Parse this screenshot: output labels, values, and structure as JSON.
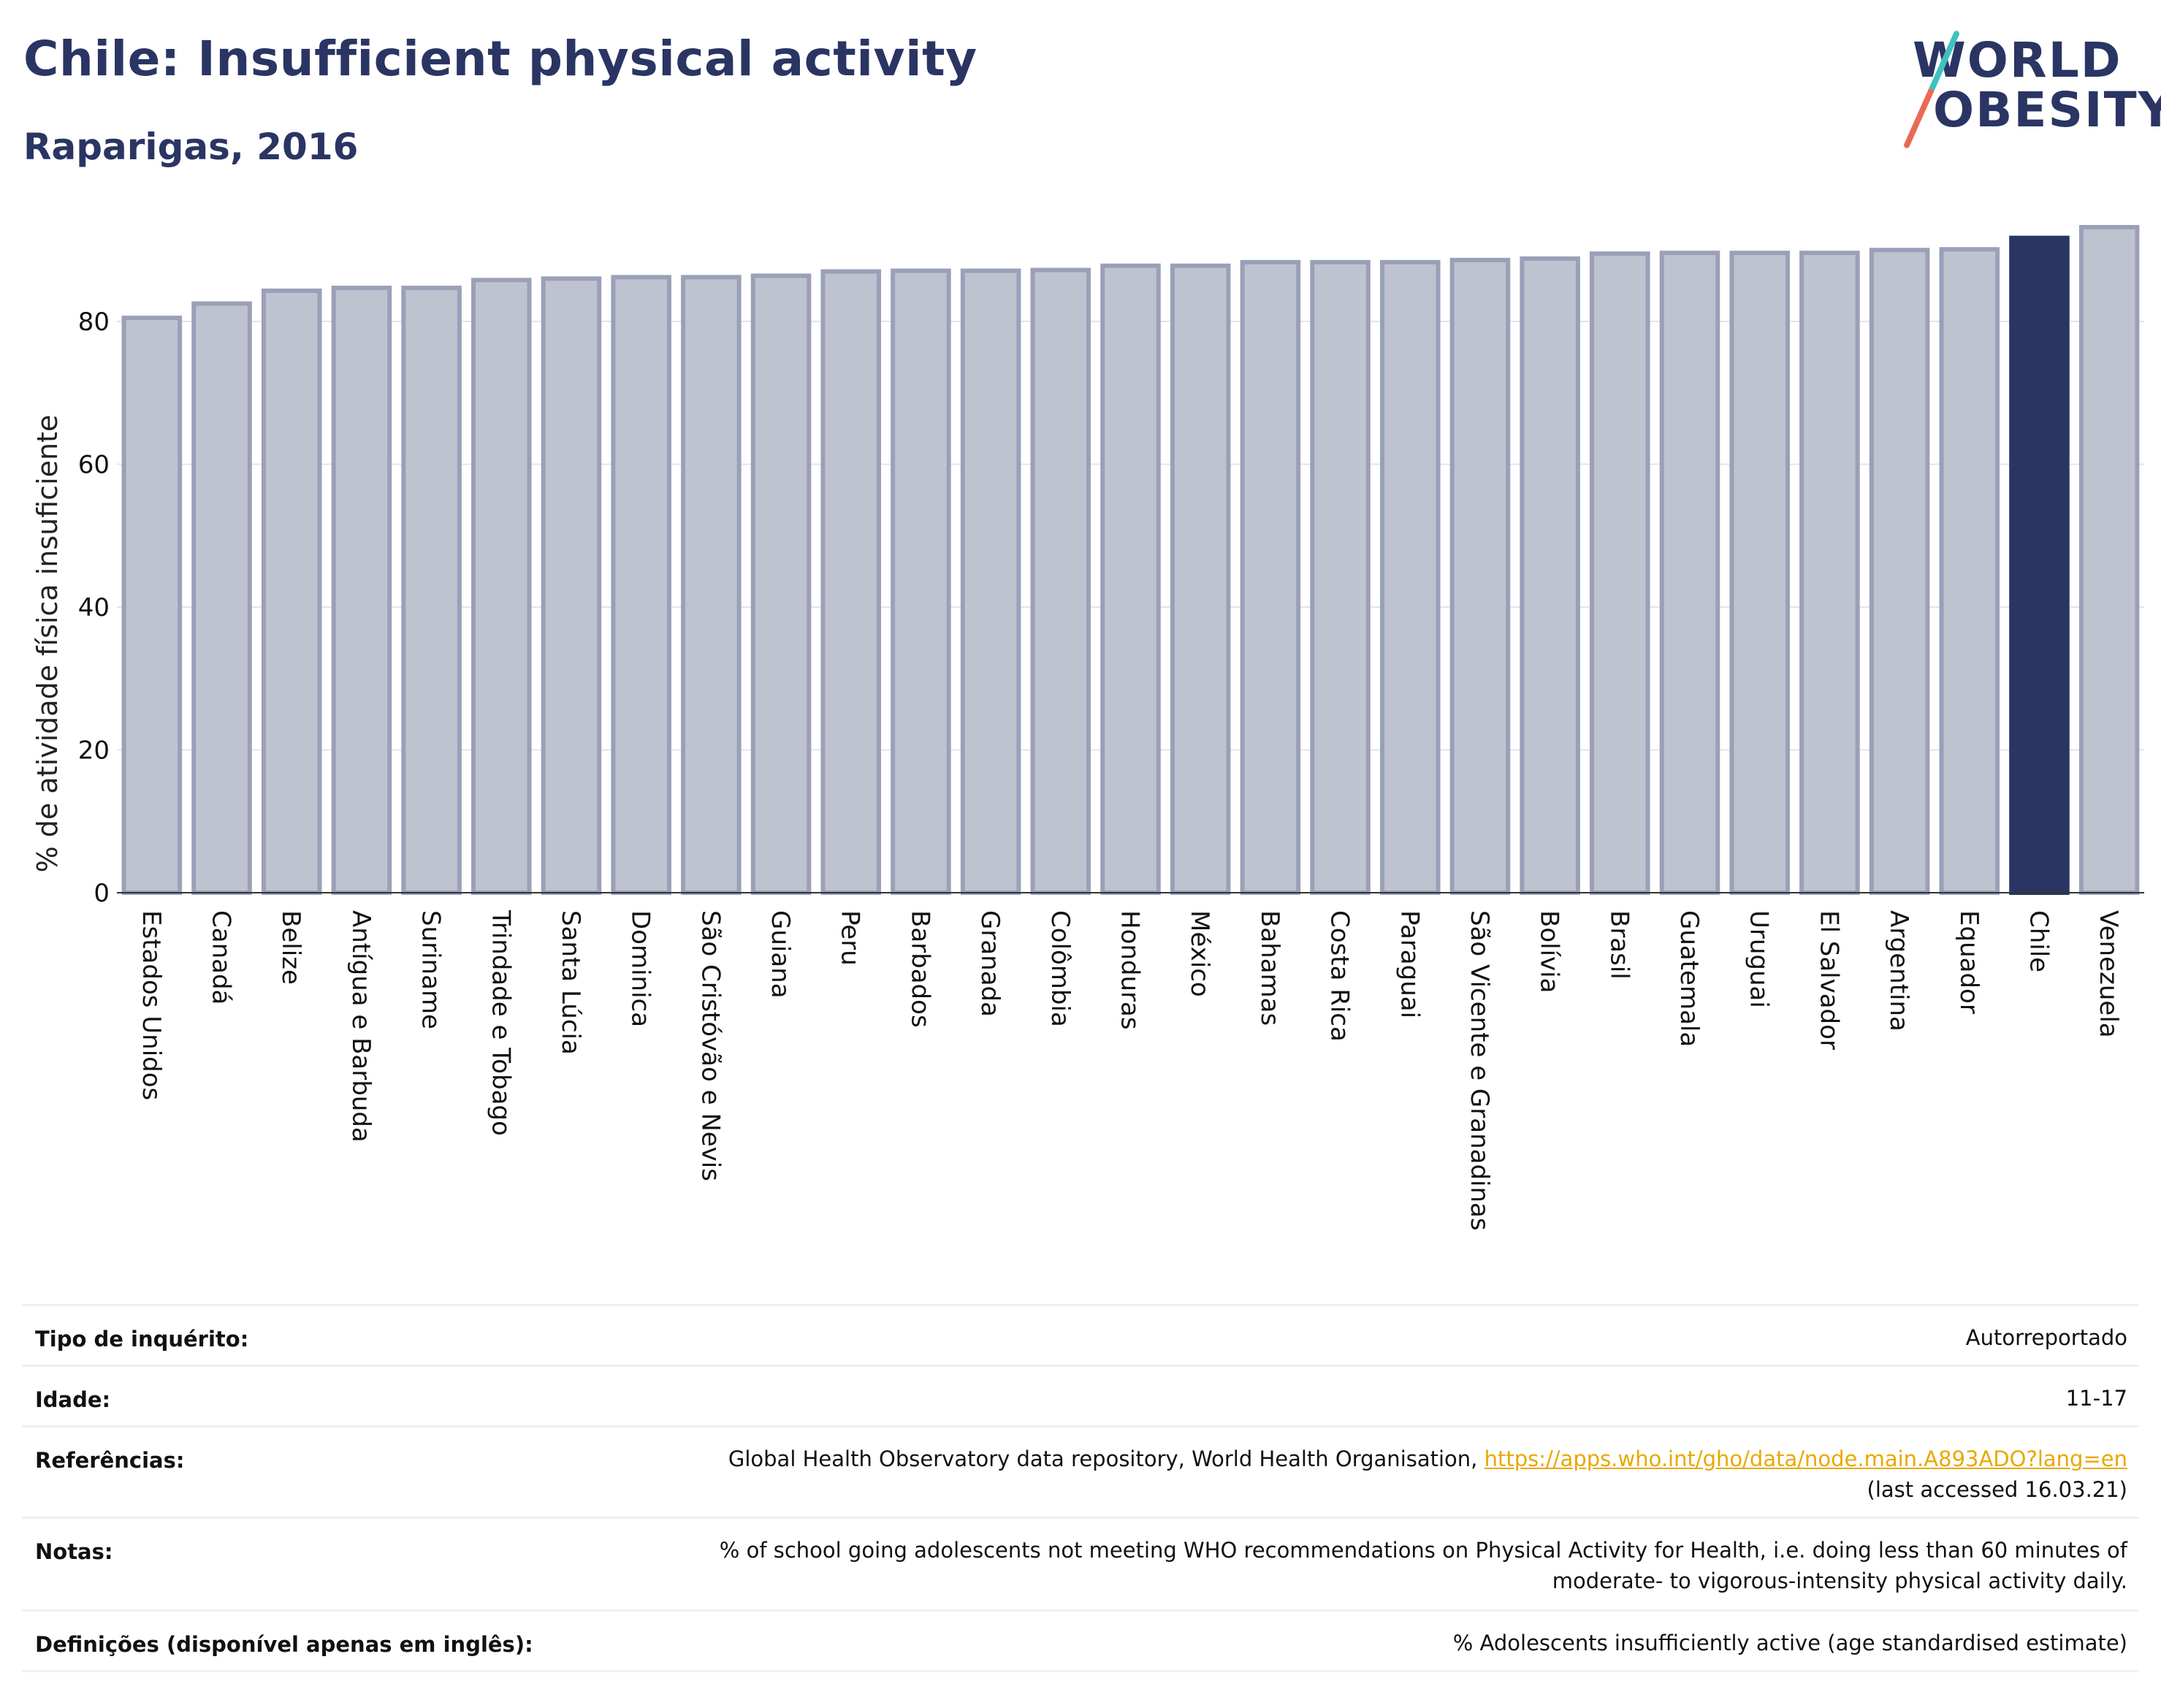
{
  "header": {
    "title": "Chile: Insufficient physical activity",
    "subtitle": "Raparigas, 2016"
  },
  "logo": {
    "line1": "WORLD",
    "line2": "OBESITY"
  },
  "chart_data": {
    "type": "bar",
    "ylabel": "% de atividade física insuficiente",
    "xlabel": "",
    "ylim": [
      0,
      95
    ],
    "yticks": [
      0,
      20,
      40,
      60,
      80
    ],
    "grid": true,
    "highlight": "Chile",
    "colors": {
      "bar": "#bfc3d0",
      "bar_edge": "#9aa0b8",
      "highlight": "#2a3563"
    },
    "categories": [
      "Estados Unidos",
      "Canadá",
      "Belize",
      "Antígua e Barbuda",
      "Suriname",
      "Trindade e Tobago",
      "Santa Lúcia",
      "Dominica",
      "São Cristóvão e Nevis",
      "Guiana",
      "Peru",
      "Barbados",
      "Granada",
      "Colômbia",
      "Honduras",
      "México",
      "Bahamas",
      "Costa Rica",
      "Paraguai",
      "São Vicente e Granadinas",
      "Bolívia",
      "Brasil",
      "Guatemala",
      "Uruguai",
      "El Salvador",
      "Argentina",
      "Equador",
      "Chile",
      "Venezuela"
    ],
    "values": [
      80.5,
      82.5,
      84.3,
      84.7,
      84.7,
      85.8,
      86.0,
      86.2,
      86.2,
      86.4,
      87.0,
      87.1,
      87.1,
      87.2,
      87.8,
      87.8,
      88.3,
      88.3,
      88.3,
      88.6,
      88.8,
      89.5,
      89.6,
      89.6,
      89.6,
      90.0,
      90.1,
      91.7,
      93.2
    ]
  },
  "info_table": [
    {
      "label": "Tipo de inquérito:",
      "value": "Autorreportado"
    },
    {
      "label": "Idade:",
      "value": "11-17"
    },
    {
      "label": "Referências:",
      "value": "Global Health Observatory data repository, World Health Organisation, ",
      "link": "https://apps.who.int/gho/data/node.main.A893ADO?lang=en",
      "value2": "(last accessed 16.03.21)"
    },
    {
      "label": "Notas:",
      "value": "% of school going adolescents not meeting WHO recommendations on Physical Activity for Health, i.e. doing less than 60 minutes of",
      "value2": "moderate- to vigorous-intensity physical activity daily."
    },
    {
      "label": "Definições (disponível apenas em inglês):",
      "value": "% Adolescents insufficiently active (age standardised estimate)"
    }
  ]
}
